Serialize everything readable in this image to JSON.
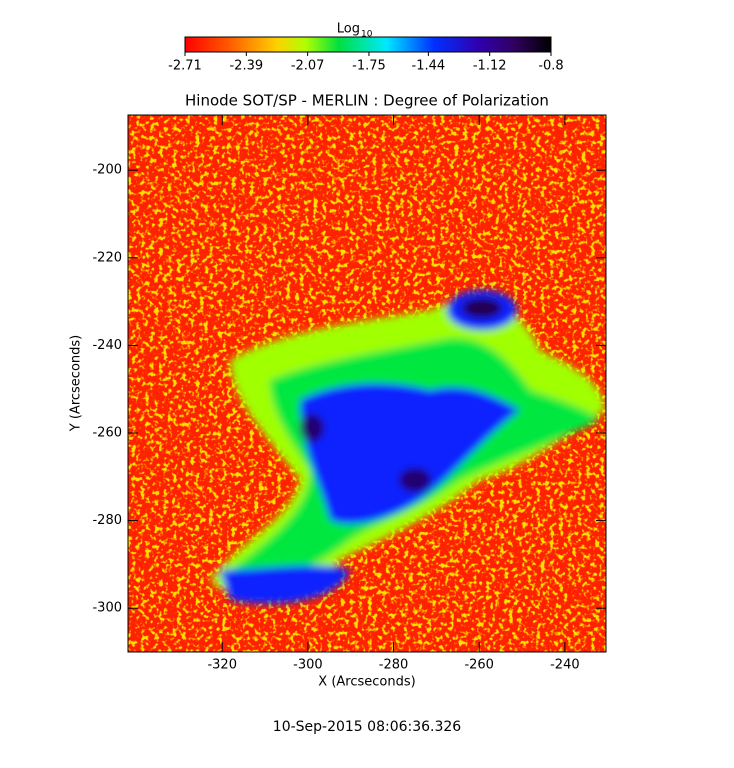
{
  "chart_data": {
    "type": "image",
    "title": "Hinode SOT/SP - MERLIN : Degree of Polarization",
    "colorbar_title": "Log",
    "colorbar_title_subscript": "10",
    "clim": [
      -2.71,
      -0.8
    ],
    "cticks": [
      -2.71,
      -2.39,
      -2.07,
      -1.75,
      -1.44,
      -1.12,
      -0.8
    ],
    "xlabel": "X (Arcseconds)",
    "ylabel": "Y (Arcseconds)",
    "xlim": [
      -342,
      -230.4
    ],
    "xticks": [
      -320,
      -300,
      -280,
      -260,
      -240
    ],
    "ylim": [
      -187.4,
      -310
    ],
    "yticks": [
      -200,
      -220,
      -240,
      -260,
      -280,
      -300
    ],
    "footer": "10-Sep-2015 08:06:36.326"
  }
}
